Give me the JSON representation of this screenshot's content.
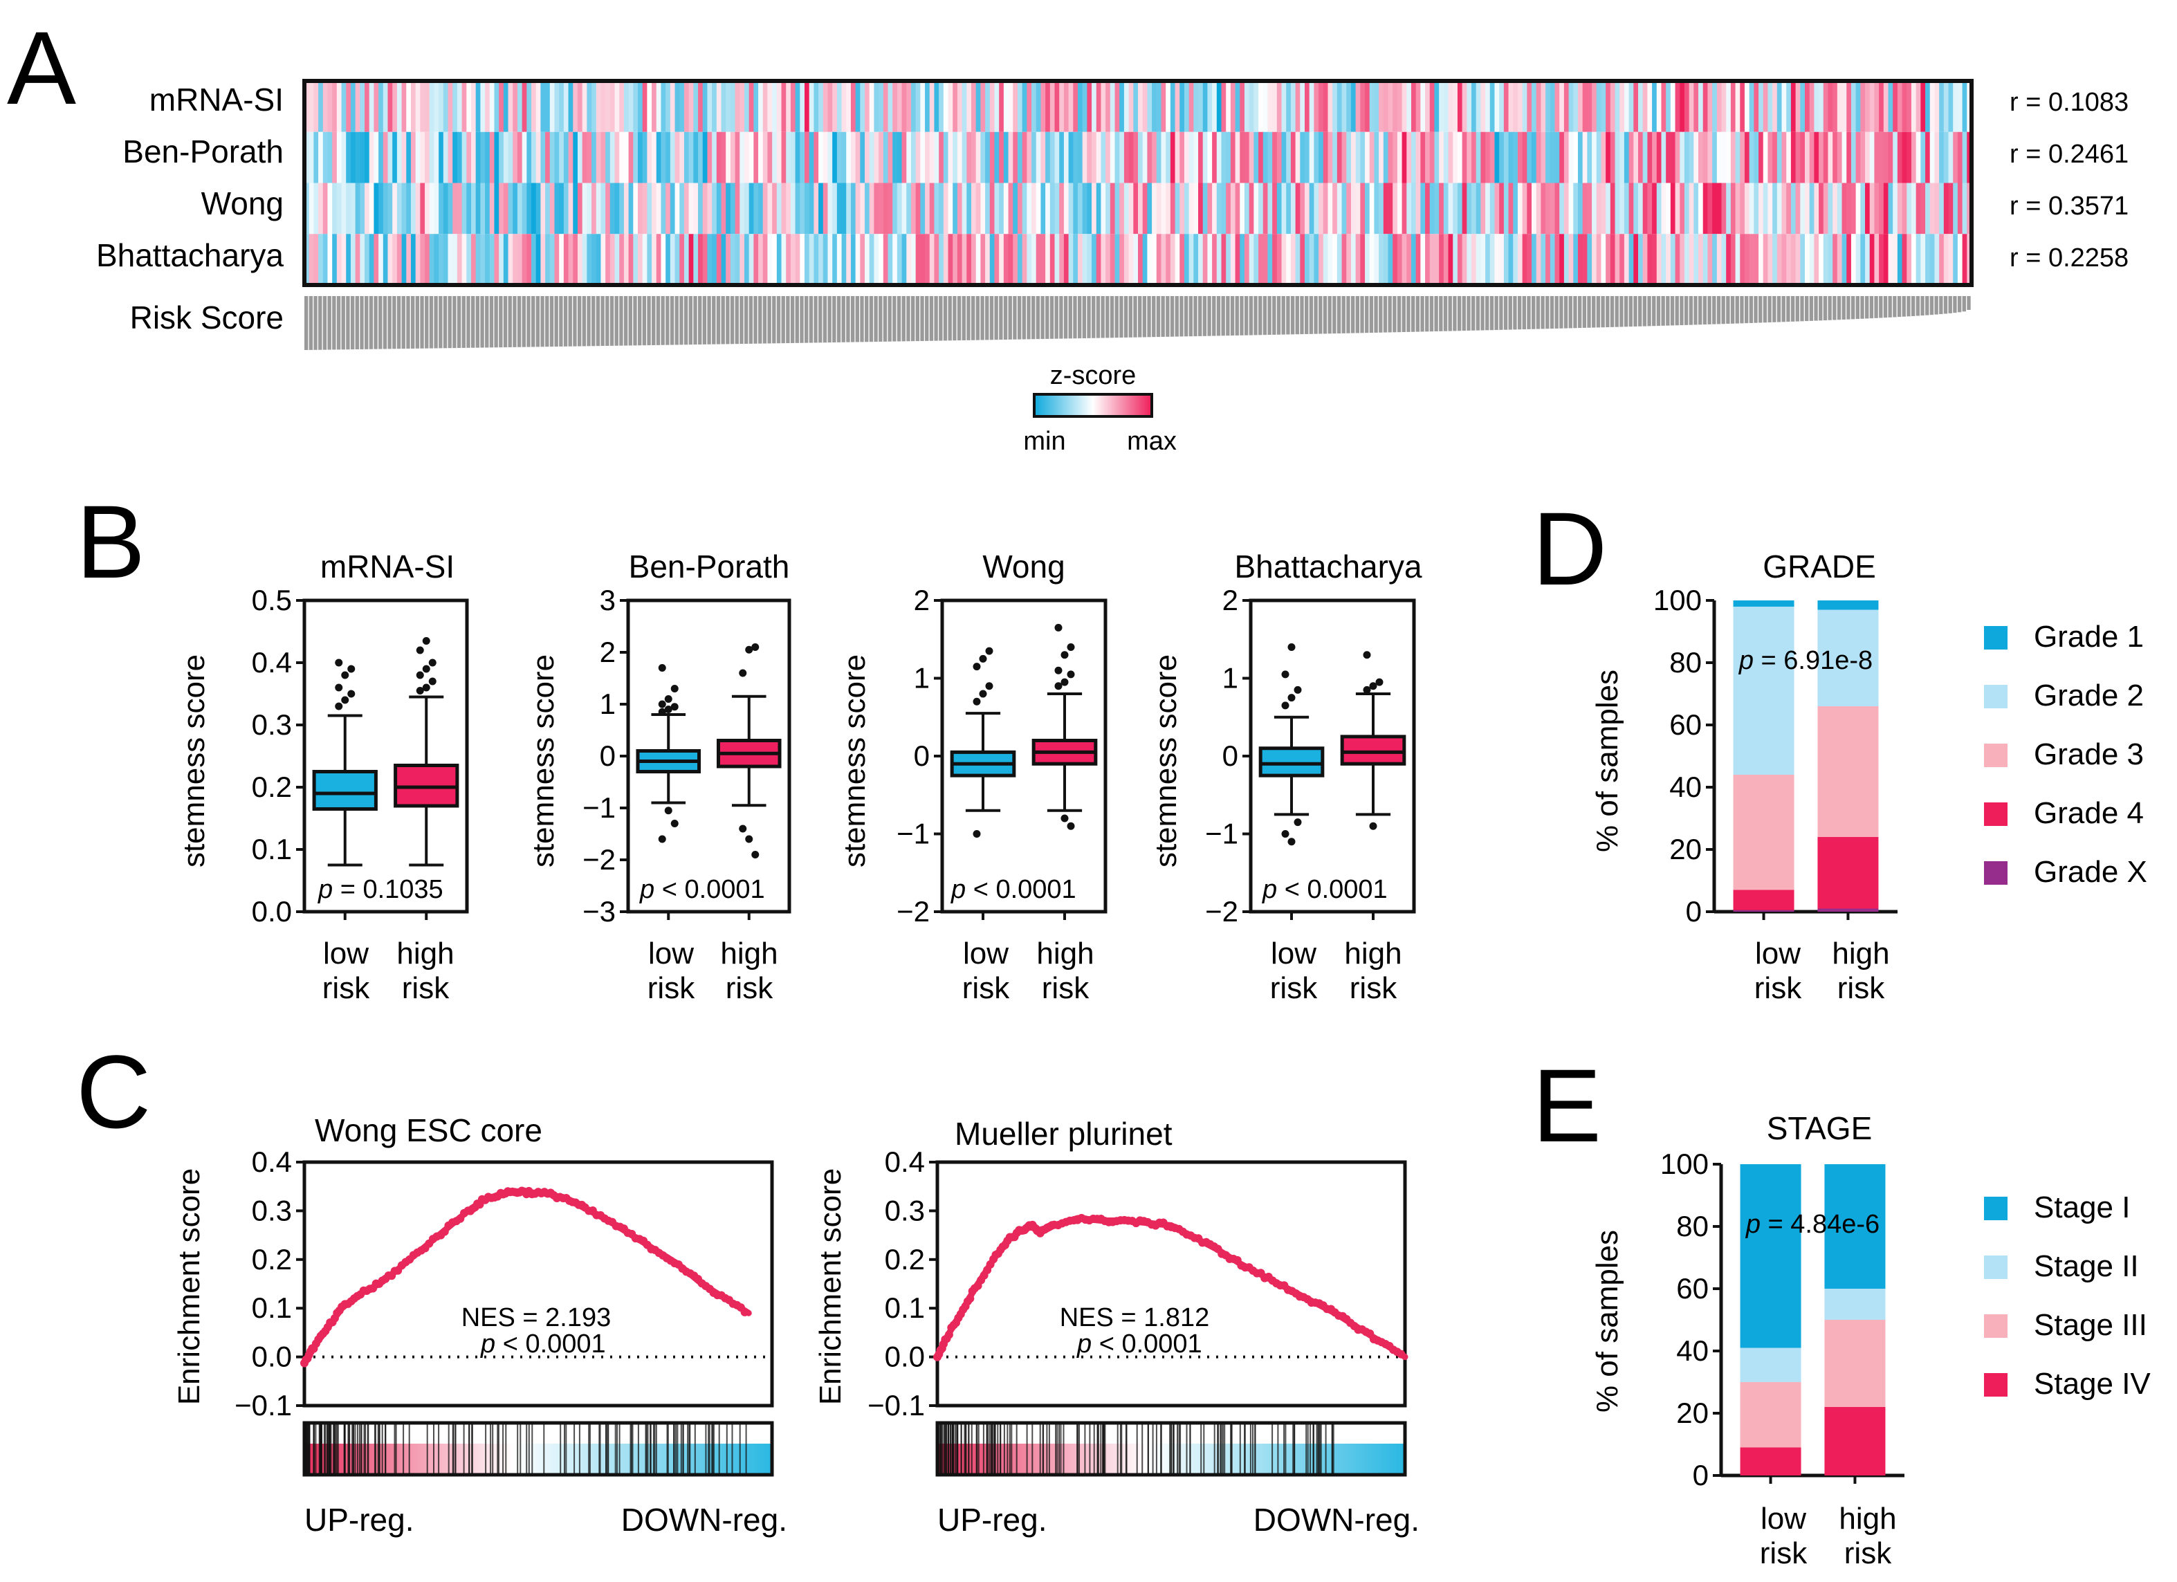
{
  "colors": {
    "low": "#1ab0e0",
    "high": "#ee2060",
    "grade1": "#0ea8dc",
    "grade2": "#b3e1f5",
    "grade3": "#f8b0ba",
    "grade4": "#ee1e5a",
    "gradeX": "#962c8c",
    "stage1": "#0ea8dc",
    "stage2": "#b3e1f5",
    "stage3": "#f8b0ba",
    "stage4": "#ee1e5a",
    "up": "#e8305e",
    "down": "#2ab8e2",
    "es": "#e8285a"
  },
  "panels": {
    "A": "A",
    "B": "B",
    "C": "C",
    "D": "D",
    "E": "E"
  },
  "chart_data": [
    {
      "id": "A",
      "type": "heatmap",
      "rows": [
        "mRNA-SI",
        "Ben-Porath",
        "Wong",
        "Bhattacharya"
      ],
      "correlations": [
        "r = 0.1083",
        "r = 0.2461",
        "r = 0.3571",
        "r = 0.2258"
      ],
      "bottom_label": "Risk Score",
      "legend": {
        "title": "z-score",
        "min": "min",
        "max": "max"
      },
      "n_samples": 360
    },
    {
      "id": "B1",
      "type": "box",
      "title": "mRNA-SI",
      "ylabel": "stemness score",
      "ylim": [
        0.0,
        0.5
      ],
      "yticks": [
        "0.0",
        "0.1",
        "0.2",
        "0.3",
        "0.4",
        "0.5"
      ],
      "tick_values": [
        0.0,
        0.1,
        0.2,
        0.3,
        0.4,
        0.5
      ],
      "categories": [
        [
          "low",
          "risk"
        ],
        [
          "high",
          "risk"
        ]
      ],
      "p_prefix": "p",
      "p_rest": " = 0.1035",
      "boxes": [
        {
          "group": "low risk",
          "min": 0.075,
          "q1": 0.165,
          "median": 0.19,
          "q3": 0.225,
          "max": 0.315,
          "outliers": [
            0.33,
            0.34,
            0.35,
            0.36,
            0.38,
            0.39,
            0.4
          ]
        },
        {
          "group": "high risk",
          "min": 0.075,
          "q1": 0.17,
          "median": 0.2,
          "q3": 0.235,
          "max": 0.345,
          "outliers": [
            0.355,
            0.36,
            0.37,
            0.38,
            0.39,
            0.4,
            0.42,
            0.435
          ]
        }
      ]
    },
    {
      "id": "B2",
      "type": "box",
      "title": "Ben-Porath",
      "ylabel": "stemness score",
      "ylim": [
        -3,
        3
      ],
      "yticks": [
        "−3",
        "−2",
        "−1",
        "0",
        "1",
        "2",
        "3"
      ],
      "tick_values": [
        -3,
        -2,
        -1,
        0,
        1,
        2,
        3
      ],
      "categories": [
        [
          "low",
          "risk"
        ],
        [
          "high",
          "risk"
        ]
      ],
      "p_prefix": "p",
      "p_rest": " < 0.0001",
      "boxes": [
        {
          "group": "low risk",
          "min": -0.9,
          "q1": -0.3,
          "median": -0.1,
          "q3": 0.1,
          "max": 0.8,
          "outliers": [
            0.85,
            0.9,
            0.95,
            1.0,
            1.1,
            1.3,
            1.7,
            -1.05,
            -1.3,
            -1.6
          ]
        },
        {
          "group": "high risk",
          "min": -0.95,
          "q1": -0.2,
          "median": 0.05,
          "q3": 0.3,
          "max": 1.15,
          "outliers": [
            1.6,
            2.05,
            2.1,
            -1.4,
            -1.6,
            -1.9
          ]
        }
      ]
    },
    {
      "id": "B3",
      "type": "box",
      "title": "Wong",
      "ylabel": "stemness score",
      "ylim": [
        -2,
        2
      ],
      "yticks": [
        "−2",
        "−1",
        "0",
        "1",
        "2"
      ],
      "tick_values": [
        -2,
        -1,
        0,
        1,
        2
      ],
      "categories": [
        [
          "low",
          "risk"
        ],
        [
          "high",
          "risk"
        ]
      ],
      "p_prefix": "p",
      "p_rest": " < 0.0001",
      "boxes": [
        {
          "group": "low risk",
          "min": -0.7,
          "q1": -0.25,
          "median": -0.1,
          "q3": 0.05,
          "max": 0.55,
          "outliers": [
            0.7,
            0.8,
            0.9,
            1.15,
            1.25,
            1.35,
            -1.0
          ]
        },
        {
          "group": "high risk",
          "min": -0.7,
          "q1": -0.1,
          "median": 0.05,
          "q3": 0.2,
          "max": 0.8,
          "outliers": [
            0.9,
            0.95,
            1.05,
            1.1,
            1.3,
            1.4,
            1.65,
            -0.8,
            -0.9
          ]
        }
      ]
    },
    {
      "id": "B4",
      "type": "box",
      "title": "Bhattacharya",
      "ylabel": "stemness score",
      "ylim": [
        -2,
        2
      ],
      "yticks": [
        "−2",
        "−1",
        "0",
        "1",
        "2"
      ],
      "tick_values": [
        -2,
        -1,
        0,
        1,
        2
      ],
      "categories": [
        [
          "low",
          "risk"
        ],
        [
          "high",
          "risk"
        ]
      ],
      "p_prefix": "p",
      "p_rest": " < 0.0001",
      "boxes": [
        {
          "group": "low risk",
          "min": -0.75,
          "q1": -0.25,
          "median": -0.1,
          "q3": 0.1,
          "max": 0.5,
          "outliers": [
            0.65,
            0.75,
            0.85,
            1.05,
            1.4,
            -0.85,
            -1.0,
            -1.1
          ]
        },
        {
          "group": "high risk",
          "min": -0.75,
          "q1": -0.1,
          "median": 0.05,
          "q3": 0.25,
          "max": 0.8,
          "outliers": [
            0.85,
            0.9,
            0.95,
            1.3,
            -0.9
          ]
        }
      ]
    },
    {
      "id": "C1",
      "type": "line",
      "title": "Wong ESC core",
      "ylabel": "Enrichment score",
      "ylim": [
        -0.1,
        0.4
      ],
      "yticks": [
        "−0.1",
        "0.0",
        "0.1",
        "0.2",
        "0.3",
        "0.4"
      ],
      "tick_values": [
        -0.1,
        0.0,
        0.1,
        0.2,
        0.3,
        0.4
      ],
      "nes": "NES = 2.193",
      "p_prefix": "p",
      "p_rest": " < 0.0001",
      "left_label": "UP-reg.",
      "right_label": "DOWN-reg.",
      "x": [
        0,
        0.02,
        0.05,
        0.08,
        0.12,
        0.16,
        0.2,
        0.25,
        0.3,
        0.35,
        0.38,
        0.42,
        0.45,
        0.48,
        0.52,
        0.56,
        0.6,
        0.65,
        0.7,
        0.75,
        0.8,
        0.85,
        0.9,
        0.95
      ],
      "y": [
        -0.01,
        0.02,
        0.06,
        0.1,
        0.13,
        0.15,
        0.18,
        0.22,
        0.26,
        0.3,
        0.32,
        0.335,
        0.34,
        0.338,
        0.335,
        0.325,
        0.305,
        0.28,
        0.25,
        0.22,
        0.19,
        0.15,
        0.12,
        0.09
      ],
      "curve_end": 0.93,
      "ticks_range": [
        0.0,
        0.95
      ]
    },
    {
      "id": "C2",
      "type": "line",
      "title": "Mueller plurinet",
      "ylabel": "Enrichment score",
      "ylim": [
        -0.1,
        0.4
      ],
      "yticks": [
        "−0.1",
        "0.0",
        "0.1",
        "0.2",
        "0.3",
        "0.4"
      ],
      "tick_values": [
        -0.1,
        0.0,
        0.1,
        0.2,
        0.3,
        0.4
      ],
      "nes": "NES = 1.812",
      "p_prefix": "p",
      "p_rest": " < 0.0001",
      "left_label": "UP-reg.",
      "right_label": "DOWN-reg.",
      "x": [
        0,
        0.02,
        0.05,
        0.08,
        0.12,
        0.15,
        0.18,
        0.2,
        0.22,
        0.25,
        0.3,
        0.35,
        0.4,
        0.45,
        0.5,
        0.55,
        0.6,
        0.65,
        0.7,
        0.75,
        0.8,
        0.85,
        0.9,
        0.95,
        1.0
      ],
      "y": [
        0.0,
        0.04,
        0.09,
        0.14,
        0.2,
        0.24,
        0.26,
        0.27,
        0.255,
        0.27,
        0.285,
        0.28,
        0.28,
        0.275,
        0.27,
        0.245,
        0.22,
        0.19,
        0.165,
        0.14,
        0.115,
        0.09,
        0.06,
        0.03,
        0.0
      ],
      "curve_end": 1.0,
      "ticks_range": [
        0.0,
        0.85
      ]
    },
    {
      "id": "D",
      "type": "stacked_bar",
      "title": "GRADE",
      "ylabel": "% of samples",
      "ylim": [
        0,
        100
      ],
      "yticks": [
        "0",
        "20",
        "40",
        "60",
        "80",
        "100"
      ],
      "tick_values": [
        0,
        20,
        40,
        60,
        80,
        100
      ],
      "categories": [
        [
          "low",
          "risk"
        ],
        [
          "high",
          "risk"
        ]
      ],
      "p_prefix": "p",
      "p_rest": " = 6.91e-8",
      "series": [
        {
          "name": "Grade X",
          "color_key": "gradeX",
          "values": [
            0.5,
            1
          ]
        },
        {
          "name": "Grade 4",
          "color_key": "grade4",
          "values": [
            6.5,
            23
          ]
        },
        {
          "name": "Grade 3",
          "color_key": "grade3",
          "values": [
            37,
            42
          ]
        },
        {
          "name": "Grade 2",
          "color_key": "grade2",
          "values": [
            54,
            31
          ]
        },
        {
          "name": "Grade 1",
          "color_key": "grade1",
          "values": [
            2,
            3
          ]
        }
      ],
      "legend": [
        "Grade 1",
        "Grade 2",
        "Grade 3",
        "Grade 4",
        "Grade X"
      ],
      "legend_keys": [
        "grade1",
        "grade2",
        "grade3",
        "grade4",
        "gradeX"
      ]
    },
    {
      "id": "E",
      "type": "stacked_bar",
      "title": "STAGE",
      "ylabel": "% of samples",
      "ylim": [
        0,
        100
      ],
      "yticks": [
        "0",
        "20",
        "40",
        "60",
        "80",
        "100"
      ],
      "tick_values": [
        0,
        20,
        40,
        60,
        80,
        100
      ],
      "categories": [
        [
          "low",
          "risk"
        ],
        [
          "high",
          "risk"
        ]
      ],
      "p_prefix": "p",
      "p_rest": " = 4.84e-6",
      "series": [
        {
          "name": "Stage IV",
          "color_key": "stage4",
          "values": [
            9,
            22
          ]
        },
        {
          "name": "Stage III",
          "color_key": "stage3",
          "values": [
            21,
            28
          ]
        },
        {
          "name": "Stage II",
          "color_key": "stage2",
          "values": [
            11,
            10
          ]
        },
        {
          "name": "Stage I",
          "color_key": "stage1",
          "values": [
            59,
            40
          ]
        }
      ],
      "legend": [
        "Stage I",
        "Stage II",
        "Stage III",
        "Stage IV"
      ],
      "legend_keys": [
        "stage1",
        "stage2",
        "stage3",
        "stage4"
      ]
    }
  ]
}
